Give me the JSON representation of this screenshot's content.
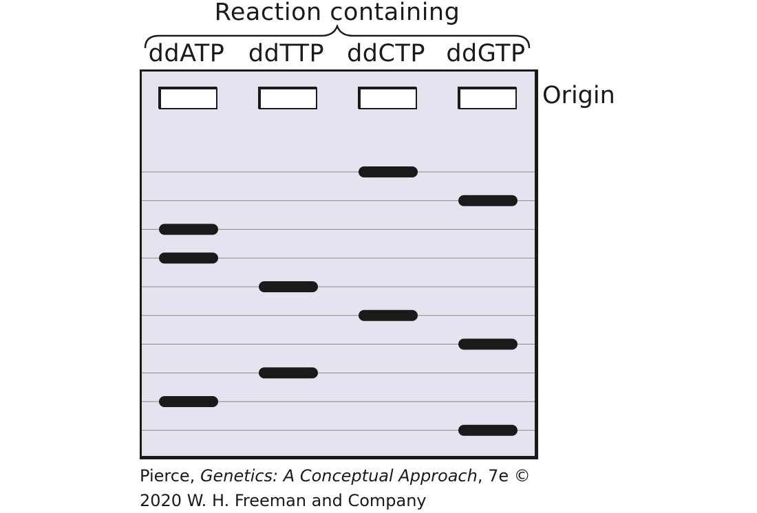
{
  "title": "Reaction containing",
  "lanes": [
    "ddATP",
    "ddTTP",
    "ddCTP",
    "ddGTP"
  ],
  "origin_label": "Origin",
  "band_rows": 10,
  "bands": [
    {
      "lane": 2,
      "row": 1
    },
    {
      "lane": 3,
      "row": 2
    },
    {
      "lane": 0,
      "row": 3
    },
    {
      "lane": 0,
      "row": 4
    },
    {
      "lane": 1,
      "row": 5
    },
    {
      "lane": 2,
      "row": 6
    },
    {
      "lane": 3,
      "row": 7
    },
    {
      "lane": 1,
      "row": 8
    },
    {
      "lane": 0,
      "row": 9
    },
    {
      "lane": 3,
      "row": 10
    }
  ],
  "credit": {
    "author": "Pierce, ",
    "book": "Genetics: A Conceptual Approach",
    "edition": ", 7e ©",
    "line2": "2020 W. H. Freeman and Company"
  },
  "colors": {
    "gel": "#e6e3f0",
    "band": "#1a1a1a",
    "line": "#8a8a8a"
  }
}
